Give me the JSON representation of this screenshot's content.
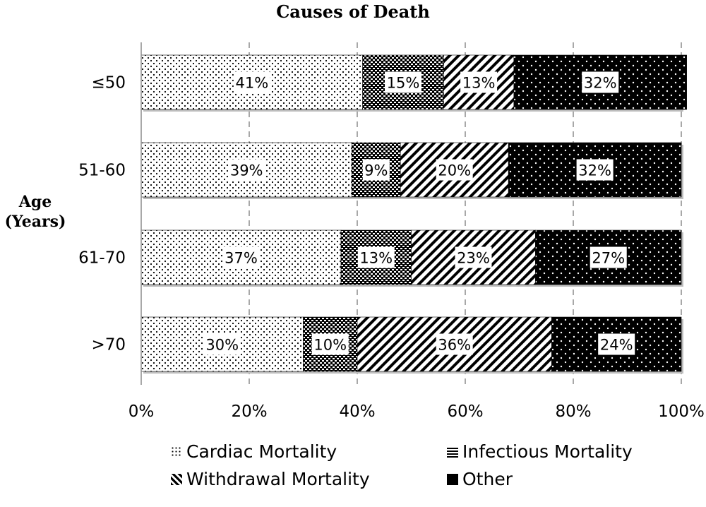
{
  "chart_data": {
    "type": "bar",
    "orientation": "horizontal",
    "stacked": "percent",
    "title": "Causes of Death",
    "ylabel": [
      "Age",
      "(Years)"
    ],
    "xlabel": "",
    "categories": [
      "≤50",
      "51-60",
      "61-70",
      ">70"
    ],
    "xlim": [
      0,
      100
    ],
    "x_ticks": [
      "0%",
      "20%",
      "40%",
      "60%",
      "80%",
      "100%"
    ],
    "grid": "vertical dashed",
    "legend_placement": "bottom",
    "series": [
      {
        "name": "Cardiac Mortality",
        "values": [
          41,
          39,
          37,
          30
        ],
        "labels": [
          "41%",
          "39%",
          "37%",
          "30%"
        ],
        "pattern": "sparse-dots"
      },
      {
        "name": "Infectious Mortality",
        "values": [
          15,
          9,
          13,
          10
        ],
        "labels": [
          "15%",
          "9%",
          "13%",
          "10%"
        ],
        "pattern": "dense-checker"
      },
      {
        "name": "Withdrawal Mortality",
        "values": [
          13,
          20,
          23,
          36
        ],
        "labels": [
          "13%",
          "20%",
          "23%",
          "36%"
        ],
        "pattern": "diagonal-stripes"
      },
      {
        "name": "Other",
        "values": [
          32,
          32,
          27,
          24
        ],
        "labels": [
          "32%",
          "32%",
          "27%",
          "24%"
        ],
        "pattern": "white-dots-on-black"
      }
    ]
  }
}
